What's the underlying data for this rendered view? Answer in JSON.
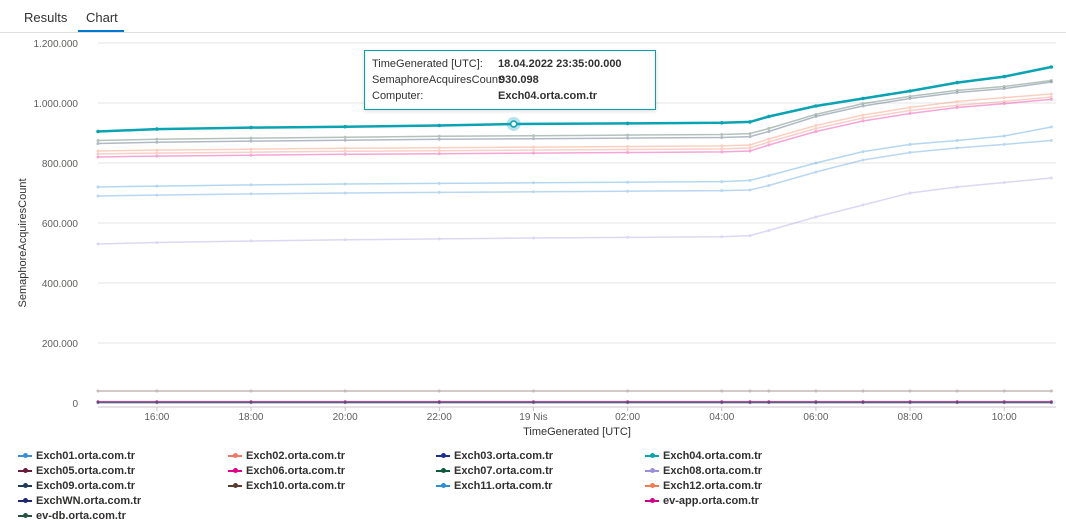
{
  "tabs": [
    {
      "label": "Results",
      "selected": false
    },
    {
      "label": "Chart",
      "selected": true
    }
  ],
  "accent_color": "#0078d4",
  "tooltip": {
    "rows": [
      {
        "key": "TimeGenerated [UTC]:",
        "value": "18.04.2022 23:35:00.000"
      },
      {
        "key": "SemaphoreAcquiresCount:",
        "value": "930.098"
      },
      {
        "key": "Computer:",
        "value": "Exch04.orta.com.tr"
      }
    ],
    "border_color": "#00a3b4"
  },
  "chart_data": {
    "type": "line",
    "title": "",
    "xlabel": "TimeGenerated [UTC]",
    "ylabel": "SemaphoreAcquiresCount",
    "ylim": [
      0,
      1200000
    ],
    "yticks": [
      0,
      200000,
      400000,
      600000,
      800000,
      1000000,
      1200000
    ],
    "ytick_labels": [
      "0",
      "200.000",
      "400.000",
      "600.000",
      "800.000",
      "1.000.000",
      "1.200.000"
    ],
    "xlim_hours": [
      -9.25,
      11.1
    ],
    "xticks_hours": [
      -8,
      -6,
      -4,
      -2,
      0,
      2,
      4,
      6,
      8,
      10
    ],
    "xtick_labels": [
      "16:00",
      "18:00",
      "20:00",
      "22:00",
      "19 Nis",
      "02:00",
      "04:00",
      "06:00",
      "08:00",
      "10:00"
    ],
    "x_unit_note": "hours relative to 19 Nis 00:00 UTC",
    "grid": true,
    "legend_position": "bottom",
    "highlighted_series": "Exch04.orta.com.tr",
    "series": [
      {
        "name": "Exch01.orta.com.tr",
        "color": "#3a8fd8",
        "x": [
          -9.25,
          -8,
          -6,
          -4,
          -2,
          0,
          2,
          4,
          4.6,
          5,
          6,
          7,
          8,
          9,
          10,
          11
        ],
        "values": [
          690000,
          693000,
          697000,
          700000,
          702000,
          704000,
          706000,
          708000,
          710000,
          725000,
          770000,
          810000,
          835000,
          850000,
          862000,
          875000
        ]
      },
      {
        "name": "Exch02.orta.com.tr",
        "color": "#f07866",
        "x": [
          -9.25,
          -8,
          -6,
          -4,
          -2,
          0,
          2,
          4,
          4.6,
          5,
          6,
          7,
          8,
          9,
          10,
          11
        ],
        "values": [
          830000,
          833000,
          836000,
          839000,
          841000,
          843000,
          845000,
          847000,
          850000,
          870000,
          915000,
          950000,
          975000,
          992000,
          1005000,
          1020000
        ]
      },
      {
        "name": "Exch03.orta.com.tr",
        "color": "#1e2e8c",
        "x": [
          -9.25,
          -8,
          -6,
          -4,
          -2,
          0,
          2,
          4,
          4.6,
          5,
          6,
          7,
          8,
          9,
          10,
          11
        ],
        "values": [
          1000,
          1000,
          1000,
          1000,
          1000,
          1000,
          1000,
          1000,
          1000,
          1000,
          1000,
          1000,
          1000,
          1000,
          1000,
          1000
        ]
      },
      {
        "name": "Exch04.orta.com.tr",
        "color": "#0aa3b2",
        "x": [
          -9.25,
          -8,
          -6,
          -4,
          -2,
          -0.42,
          2,
          4,
          4.6,
          5,
          6,
          7,
          8,
          9,
          10,
          11
        ],
        "values": [
          905000,
          913000,
          918000,
          921000,
          925000,
          930098,
          932000,
          934000,
          937000,
          955000,
          990000,
          1015000,
          1040000,
          1068000,
          1088000,
          1120000
        ]
      },
      {
        "name": "Exch05.orta.com.tr",
        "color": "#6a1b3a",
        "x": [
          -9.25,
          -8,
          -6,
          -4,
          -2,
          0,
          2,
          4,
          4.6,
          5,
          6,
          7,
          8,
          9,
          10,
          11
        ],
        "values": [
          2000,
          2000,
          2000,
          2000,
          2000,
          2000,
          2000,
          2000,
          2000,
          2000,
          2000,
          2000,
          2000,
          2000,
          2000,
          2000
        ]
      },
      {
        "name": "Exch06.orta.com.tr",
        "color": "#e3008c",
        "x": [
          -9.25,
          -8,
          -6,
          -4,
          -2,
          0,
          2,
          4,
          4.6,
          5,
          6,
          7,
          8,
          9,
          10,
          11
        ],
        "values": [
          820000,
          823000,
          826000,
          829000,
          831000,
          833000,
          835000,
          837000,
          840000,
          860000,
          905000,
          940000,
          965000,
          985000,
          998000,
          1012000
        ]
      },
      {
        "name": "Exch07.orta.com.tr",
        "color": "#0b5a3c",
        "x": [
          -9.25,
          -8,
          -6,
          -4,
          -2,
          0,
          2,
          4,
          4.6,
          5,
          6,
          7,
          8,
          9,
          10,
          11
        ],
        "values": [
          3000,
          3000,
          3000,
          3000,
          3000,
          3000,
          3000,
          3000,
          3000,
          3000,
          3000,
          3000,
          3000,
          3000,
          3000,
          3000
        ]
      },
      {
        "name": "Exch08.orta.com.tr",
        "color": "#9d8fe0",
        "x": [
          -9.25,
          -8,
          -6,
          -4,
          -2,
          0,
          2,
          4,
          4.6,
          5,
          6,
          7,
          8,
          9,
          10,
          11
        ],
        "values": [
          530000,
          535000,
          540000,
          544000,
          547000,
          550000,
          552000,
          554000,
          558000,
          575000,
          620000,
          660000,
          700000,
          720000,
          735000,
          750000
        ]
      },
      {
        "name": "Exch09.orta.com.tr",
        "color": "#1f3a5a",
        "x": [
          -9.25,
          -8,
          -6,
          -4,
          -2,
          0,
          2,
          4,
          4.6,
          5,
          6,
          7,
          8,
          9,
          10,
          11
        ],
        "values": [
          865000,
          869000,
          873000,
          876000,
          879000,
          881000,
          883000,
          885000,
          888000,
          905000,
          955000,
          990000,
          1015000,
          1035000,
          1048000,
          1070000
        ]
      },
      {
        "name": "Exch10.orta.com.tr",
        "color": "#5c3b2e",
        "x": [
          -9.25,
          -8,
          -6,
          -4,
          -2,
          0,
          2,
          4,
          4.6,
          5,
          6,
          7,
          8,
          9,
          10,
          11
        ],
        "values": [
          40000,
          40000,
          40000,
          40000,
          40000,
          40000,
          40000,
          40000,
          40000,
          40000,
          40000,
          40000,
          40000,
          40000,
          40000,
          40000
        ]
      },
      {
        "name": "Exch11.orta.com.tr",
        "color": "#2b8fd8",
        "x": [
          -9.25,
          -8,
          -6,
          -4,
          -2,
          0,
          2,
          4,
          4.6,
          5,
          6,
          7,
          8,
          9,
          10,
          11
        ],
        "values": [
          720000,
          723000,
          727000,
          730000,
          732000,
          734000,
          736000,
          738000,
          742000,
          758000,
          800000,
          838000,
          862000,
          875000,
          890000,
          920000
        ]
      },
      {
        "name": "Exch12.orta.com.tr",
        "color": "#f47a50",
        "x": [
          -9.25,
          -8,
          -6,
          -4,
          -2,
          0,
          2,
          4,
          4.6,
          5,
          6,
          7,
          8,
          9,
          10,
          11
        ],
        "values": [
          840000,
          843000,
          846000,
          849000,
          851000,
          853000,
          855000,
          857000,
          860000,
          880000,
          925000,
          960000,
          985000,
          1005000,
          1018000,
          1030000
        ]
      },
      {
        "name": "ExchWN.orta.com.tr",
        "color": "#1a2a6c",
        "x": [
          -9.25,
          -8,
          -6,
          -4,
          -2,
          0,
          2,
          4,
          4.6,
          5,
          6,
          7,
          8,
          9,
          10,
          11
        ],
        "values": [
          4000,
          4000,
          4000,
          4000,
          4000,
          4000,
          4000,
          4000,
          4000,
          4000,
          4000,
          4000,
          4000,
          4000,
          4000,
          4000
        ]
      },
      {
        "name": "ev-app.orta.com.tr",
        "color": "#d1008a",
        "x": [
          -9.25,
          -8,
          -6,
          -4,
          -2,
          0,
          2,
          4,
          4.6,
          5,
          6,
          7,
          8,
          9,
          10,
          11
        ],
        "values": [
          5000,
          5000,
          5000,
          5000,
          5000,
          5000,
          5000,
          5000,
          5000,
          5000,
          5000,
          5000,
          5000,
          5000,
          5000,
          5000
        ]
      },
      {
        "name": "ev-db.orta.com.tr",
        "color": "#27543e",
        "x": [
          -9.25,
          -8,
          -6,
          -4,
          -2,
          0,
          2,
          4,
          4.6,
          5,
          6,
          7,
          8,
          9,
          10,
          11
        ],
        "values": [
          875000,
          879000,
          883000,
          886000,
          889000,
          891000,
          893000,
          895000,
          898000,
          915000,
          962000,
          998000,
          1022000,
          1042000,
          1055000,
          1075000
        ]
      }
    ]
  }
}
